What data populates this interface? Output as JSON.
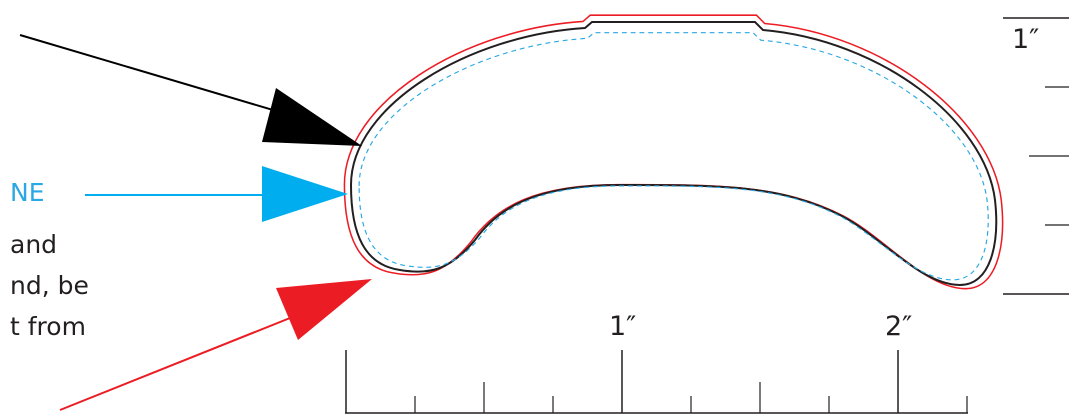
{
  "labels": {
    "safe_line": "NE",
    "note_lines": [
      "and",
      "nd, be",
      "t from"
    ]
  },
  "ruler": {
    "h_labels": [
      "1″",
      "2″"
    ],
    "v_labels": [
      "1″"
    ]
  },
  "colors": {
    "cut_line": "#231f20",
    "bleed_line": "#ec1c24",
    "safe_line": "#2aa8e3",
    "arrow_black": "#000000",
    "arrow_blue": "#00aeef",
    "arrow_red": "#ec1c24"
  }
}
